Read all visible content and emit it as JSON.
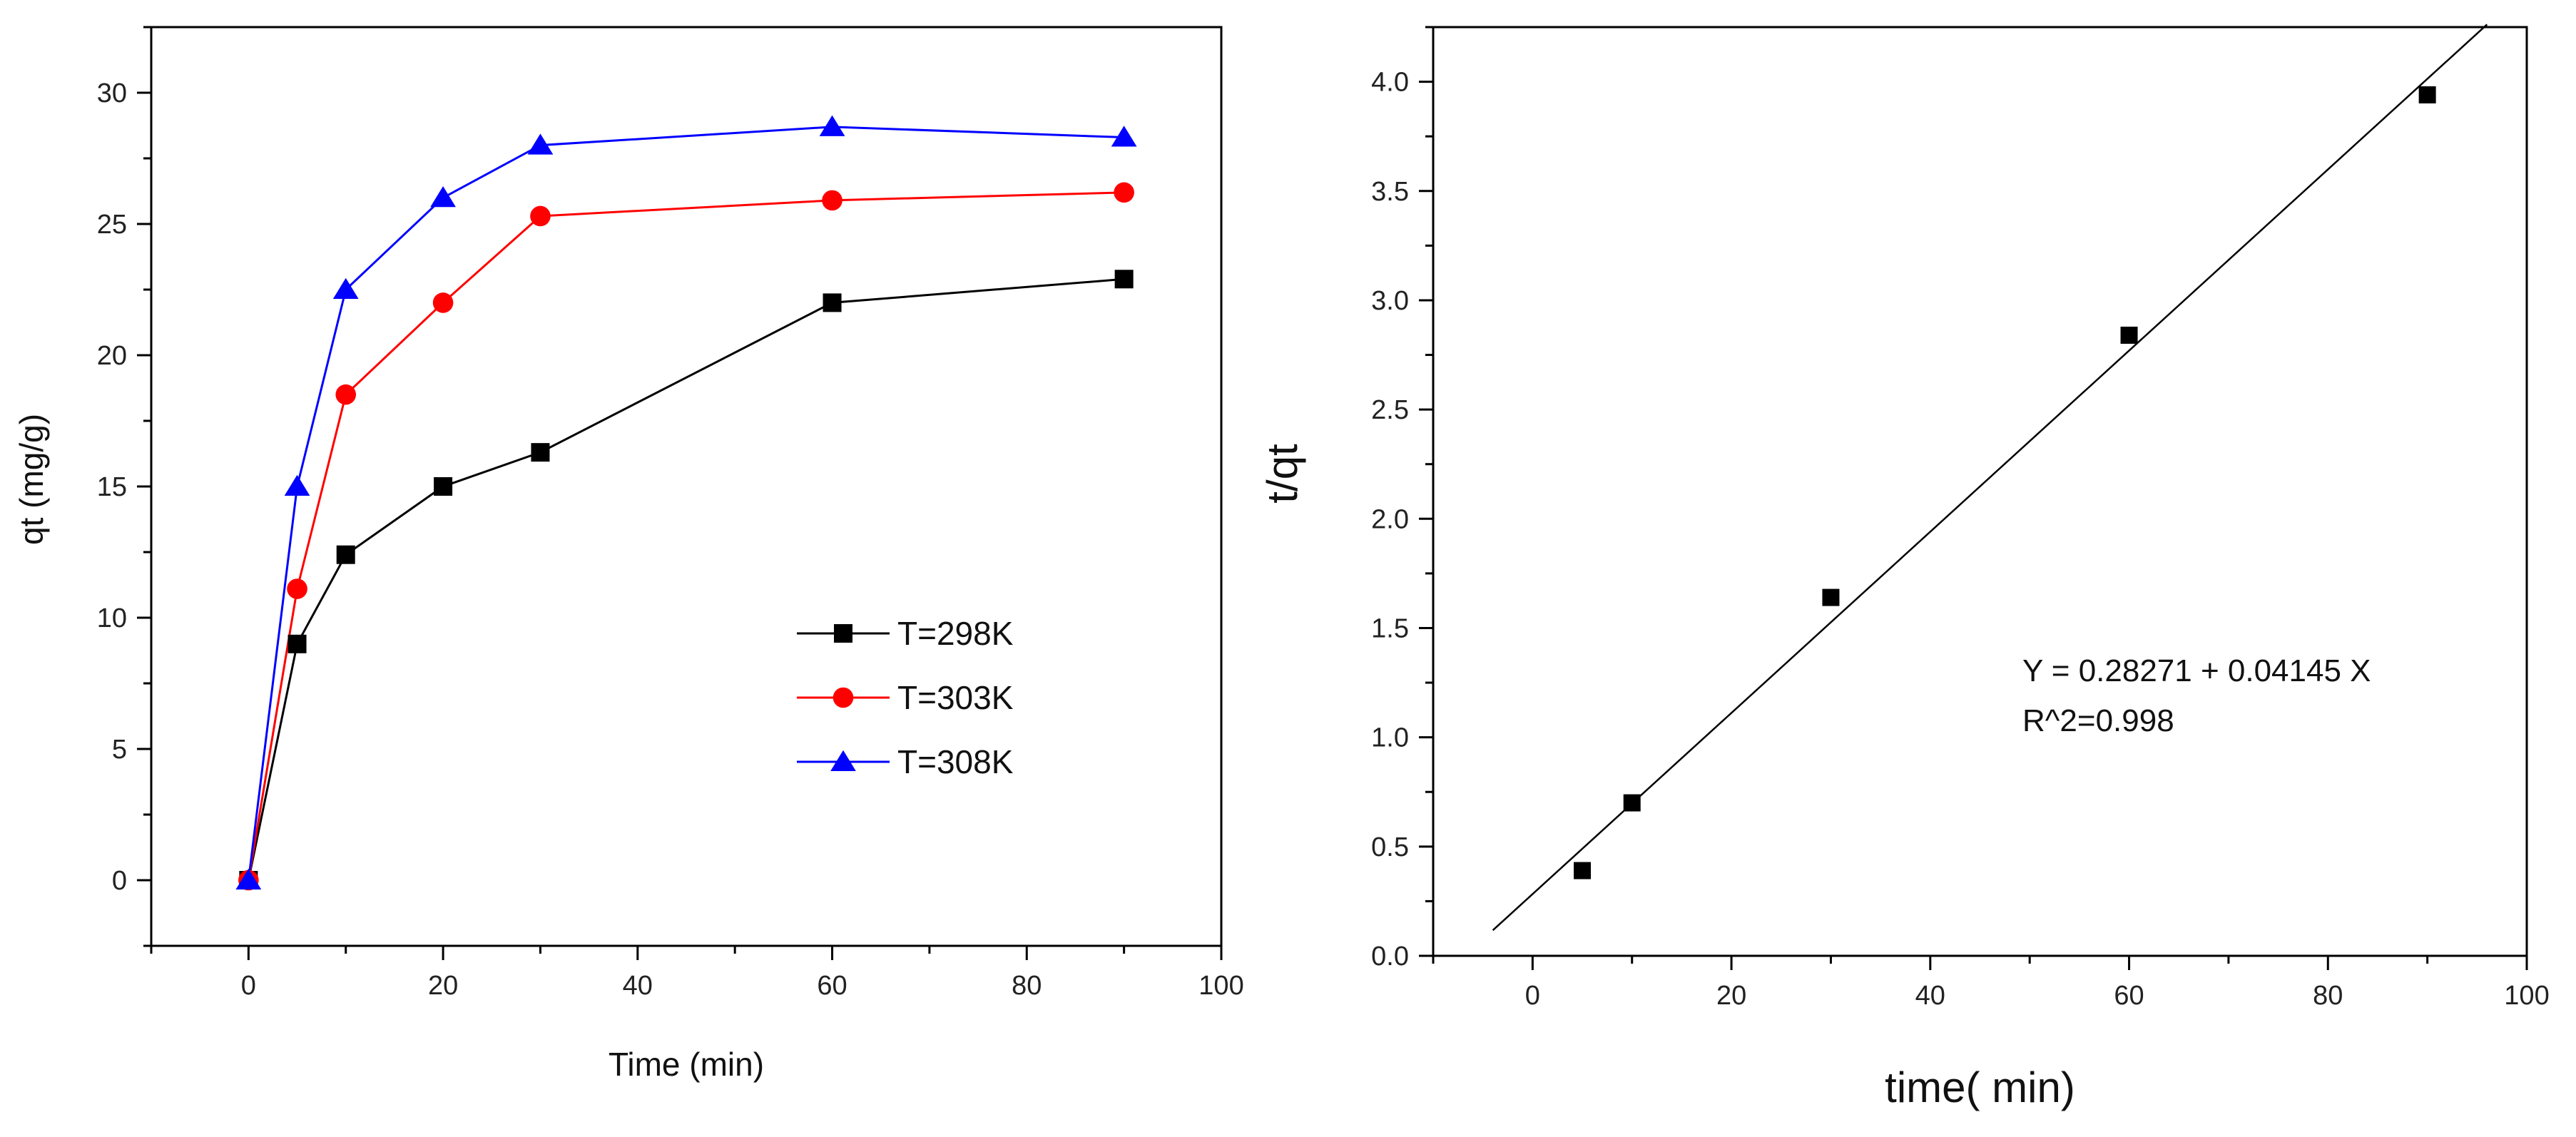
{
  "chart_data": [
    {
      "type": "line",
      "title": "",
      "xlabel": "Time (min)",
      "ylabel": "qt (mg/g)",
      "xlim": [
        -10,
        100
      ],
      "ylim": [
        -2.5,
        32.5
      ],
      "xticks": [
        0,
        20,
        40,
        60,
        80,
        100
      ],
      "xtick_labels": [
        "0",
        "20",
        "40",
        "60",
        "80",
        "100"
      ],
      "yticks": [
        0,
        5,
        10,
        15,
        20,
        25,
        30
      ],
      "ytick_labels": [
        "0",
        "5",
        "10",
        "15",
        "20",
        "25",
        "30"
      ],
      "grid": false,
      "legend_position": "center-right",
      "x": [
        0,
        5,
        10,
        20,
        30,
        60,
        90
      ],
      "series": [
        {
          "name": "T=298K",
          "color": "#000000",
          "marker": "square",
          "values": [
            0,
            9.0,
            12.4,
            15.0,
            16.3,
            22.0,
            22.9
          ]
        },
        {
          "name": "T=303K",
          "color": "#ff0000",
          "marker": "circle",
          "values": [
            0,
            11.1,
            18.5,
            22.0,
            25.3,
            25.9,
            26.2
          ]
        },
        {
          "name": "T=308K",
          "color": "#0000ff",
          "marker": "triangle",
          "values": [
            0,
            15.0,
            22.5,
            26.0,
            28.0,
            28.7,
            28.3
          ]
        }
      ]
    },
    {
      "type": "scatter",
      "title": "",
      "xlabel": "time(  min)",
      "ylabel": "t/qt",
      "xlim": [
        -10,
        100
      ],
      "ylim": [
        0.0,
        4.25
      ],
      "xticks": [
        0,
        20,
        40,
        60,
        80,
        100
      ],
      "xtick_labels": [
        "0",
        "20",
        "40",
        "60",
        "80",
        "100"
      ],
      "yticks": [
        0.0,
        0.5,
        1.0,
        1.5,
        2.0,
        2.5,
        3.0,
        3.5,
        4.0
      ],
      "ytick_labels": [
        "0.0",
        "0.5",
        "1.0",
        "1.5",
        "2.0",
        "2.5",
        "3.0",
        "3.5",
        "4.0"
      ],
      "grid": false,
      "series": [
        {
          "name": "data",
          "color": "#000000",
          "marker": "square",
          "x": [
            5,
            10,
            30,
            60,
            90
          ],
          "y": [
            0.39,
            0.7,
            1.64,
            2.84,
            3.94
          ]
        }
      ],
      "fit": {
        "intercept": 0.28271,
        "slope": 0.04145,
        "x_range": [
          -4,
          96
        ],
        "color": "#000000"
      },
      "annotation": {
        "equation": "Y = 0.28271 + 0.04145 X",
        "r2": "R^2=0.998",
        "position": "right-middle"
      }
    }
  ]
}
